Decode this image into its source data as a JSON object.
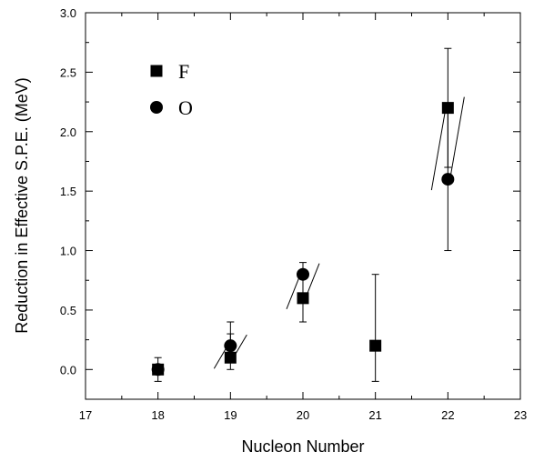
{
  "chart_data": {
    "type": "scatter",
    "title": "",
    "xlabel": "Nucleon Number",
    "ylabel": "Reduction in Effective S.P.E. (MeV)",
    "xlim": [
      17,
      23
    ],
    "ylim": [
      -0.25,
      3.0
    ],
    "x_ticks": [
      "17",
      "18",
      "19",
      "20",
      "21",
      "22",
      "23"
    ],
    "y_ticks": [
      "0.0",
      "0.5",
      "1.0",
      "1.5",
      "2.0",
      "2.5",
      "3.0"
    ],
    "legend_position": "top-left",
    "grid": false,
    "series": [
      {
        "name": "F",
        "marker": "square",
        "points": [
          {
            "x": 18,
            "y": 0.0,
            "err_low": 0.0,
            "err_high": 0.0
          },
          {
            "x": 19,
            "y": 0.1,
            "err_low": 0.0,
            "err_high": 0.4
          },
          {
            "x": 20,
            "y": 0.6,
            "err_low": 0.4,
            "err_high": 0.6
          },
          {
            "x": 21,
            "y": 0.2,
            "err_low": -0.1,
            "err_high": 0.8
          },
          {
            "x": 22,
            "y": 2.2,
            "err_low": 1.7,
            "err_high": 2.7
          }
        ]
      },
      {
        "name": "O",
        "marker": "circle",
        "points": [
          {
            "x": 18,
            "y": 0.0,
            "err_low": -0.1,
            "err_high": 0.1
          },
          {
            "x": 19,
            "y": 0.2,
            "err_low": 0.1,
            "err_high": 0.3
          },
          {
            "x": 20,
            "y": 0.8,
            "err_low": 0.6,
            "err_high": 0.9
          },
          {
            "x": 22,
            "y": 1.6,
            "err_low": 1.0,
            "err_high": 2.2
          }
        ]
      }
    ]
  }
}
